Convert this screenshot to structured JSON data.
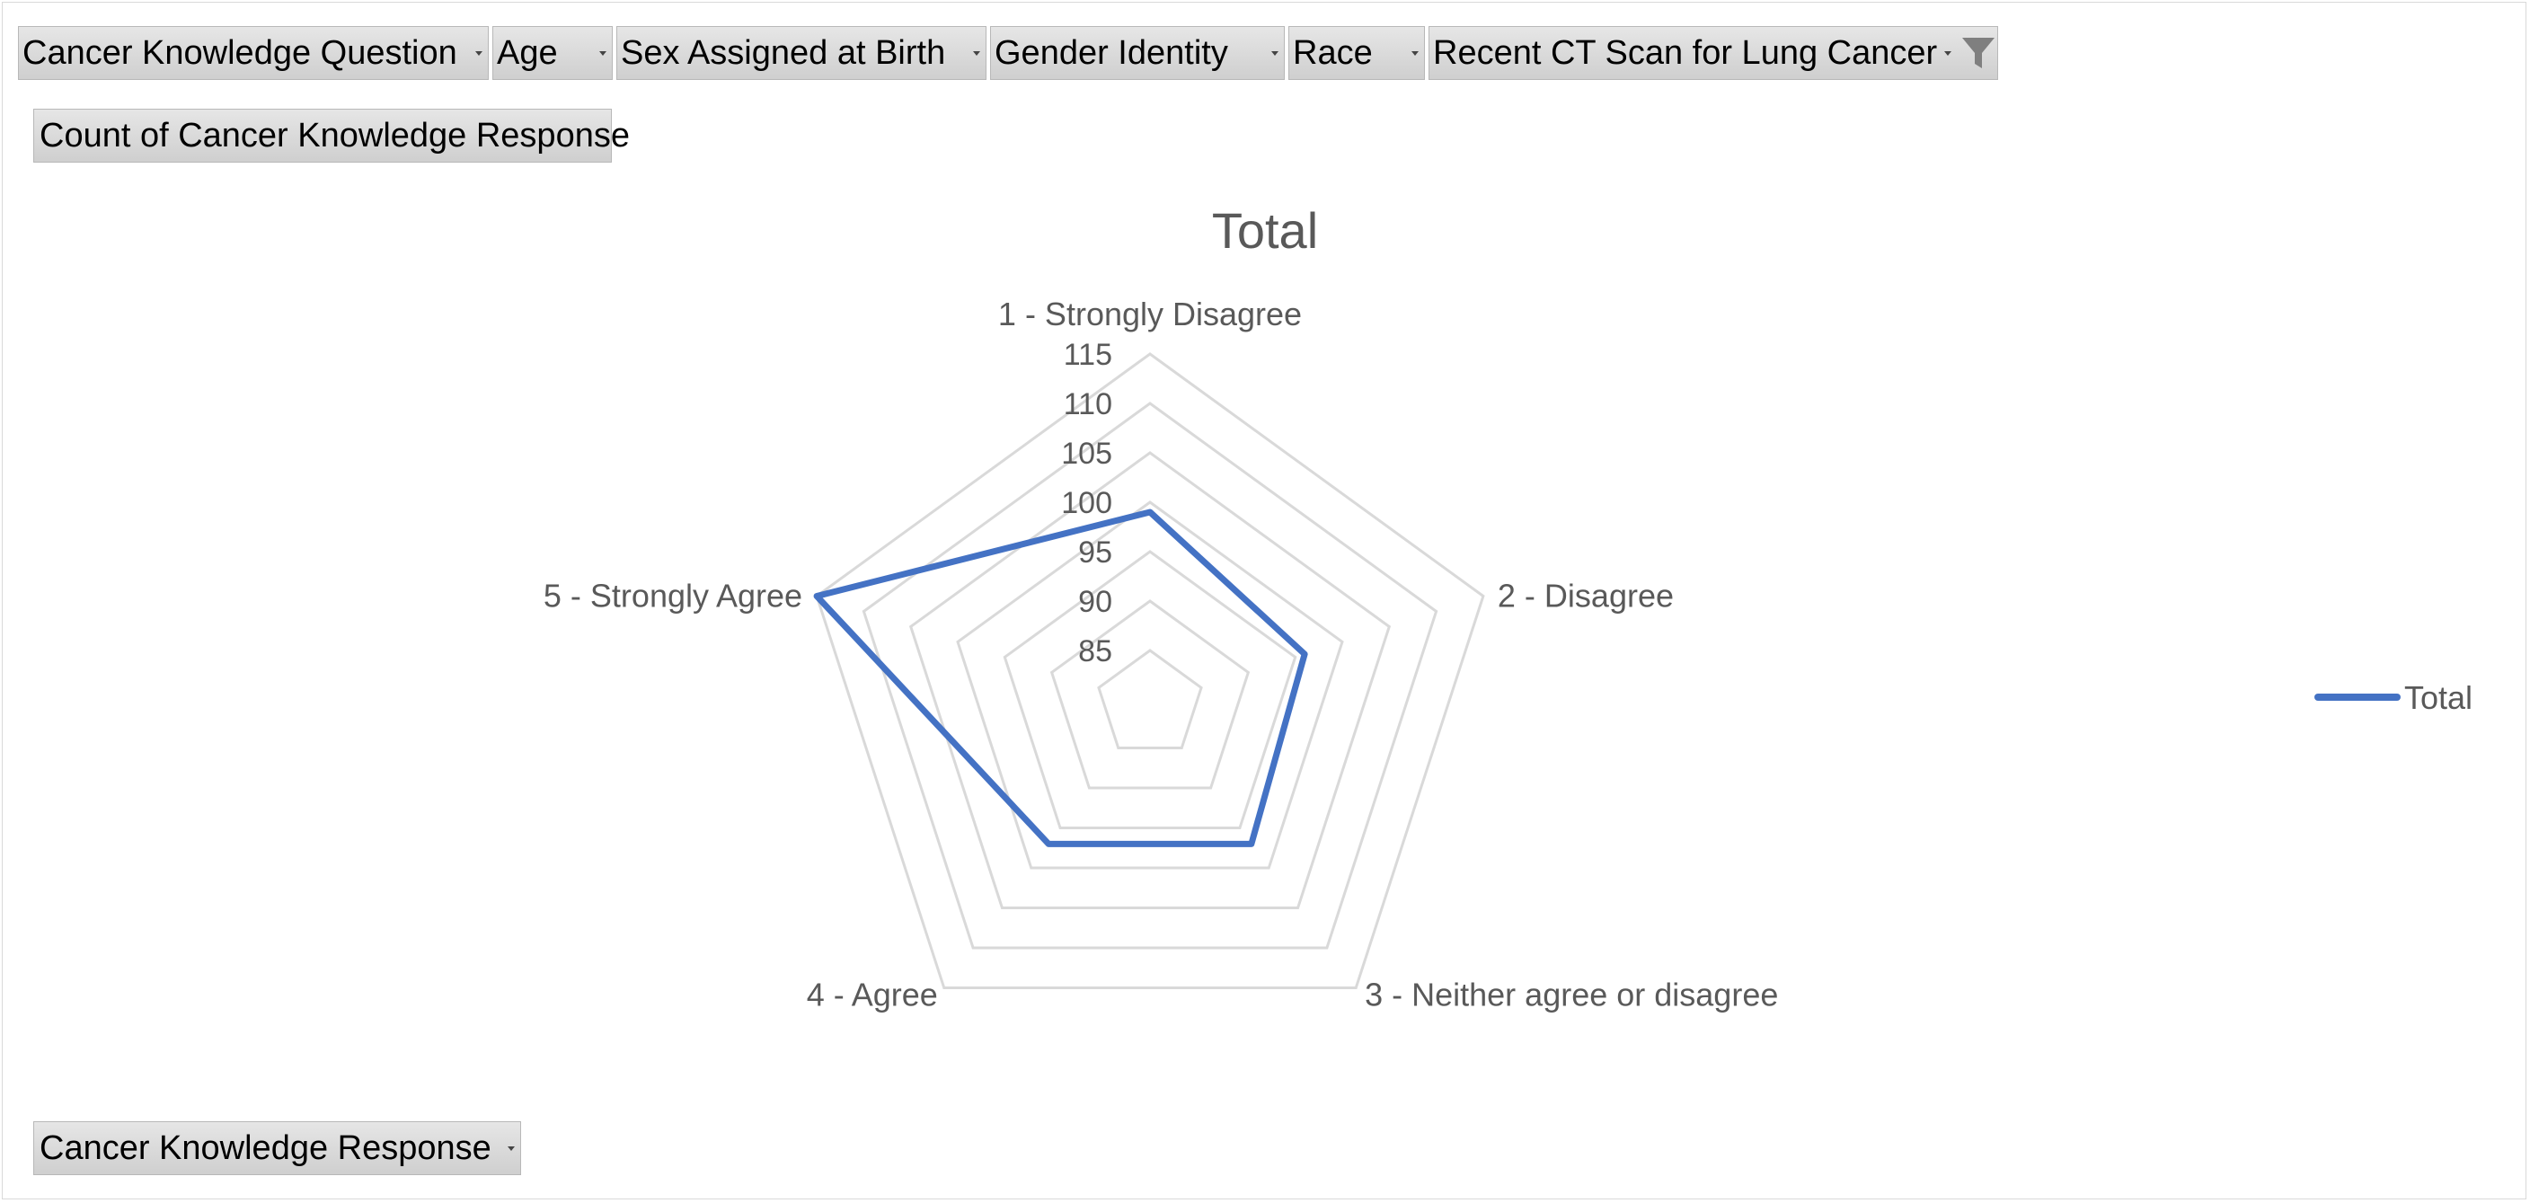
{
  "filters": [
    {
      "label": "Cancer Knowledge Question",
      "has_filter": false
    },
    {
      "label": "Age",
      "has_filter": false
    },
    {
      "label": "Sex Assigned at Birth",
      "has_filter": false
    },
    {
      "label": "Gender Identity",
      "has_filter": false
    },
    {
      "label": "Race",
      "has_filter": false
    },
    {
      "label": "Recent CT Scan for Lung Cancer",
      "has_filter": true
    }
  ],
  "value_field": "Count of Cancer Knowledge Response",
  "axis_field": "Cancer Knowledge Response",
  "colors": {
    "series": "#4472c4",
    "grid": "#d9d9d9",
    "text": "#595959"
  },
  "chart_data": {
    "type": "radar",
    "title": "Total",
    "categories": [
      "1 - Strongly Disagree",
      "2 - Disagree",
      "3 - Neither agree or disagree",
      "4 - Agree",
      "5 - Strongly Agree"
    ],
    "series": [
      {
        "name": "Total",
        "values": [
          99,
          96,
          97,
          97,
          115
        ]
      }
    ],
    "rlim": [
      85,
      115
    ],
    "ticks": [
      85,
      90,
      95,
      100,
      105,
      110,
      115
    ],
    "tick_labels": [
      "85",
      "90",
      "95",
      "100",
      "105",
      "110",
      "115"
    ],
    "grid": true,
    "legend_position": "right"
  }
}
